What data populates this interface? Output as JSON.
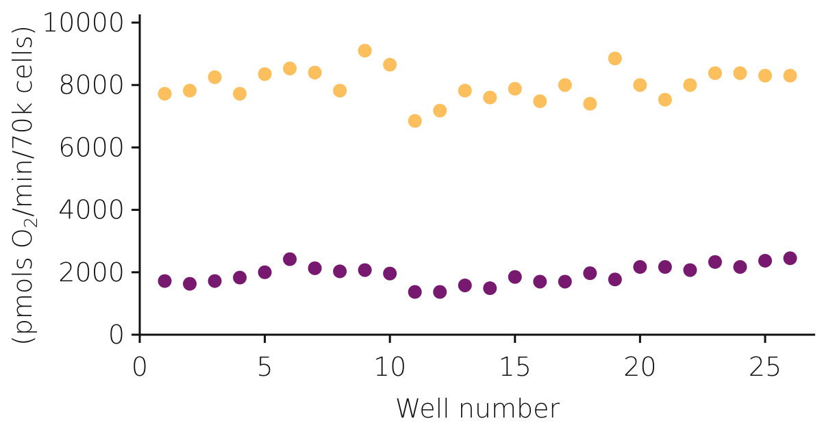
{
  "chart_data": {
    "type": "scatter",
    "xlabel": "Well number",
    "ylabel": {
      "prefix": "(pmols O",
      "subscript": "2",
      "suffix": "/min/70k cells)"
    },
    "xlim": [
      0,
      27
    ],
    "ylim": [
      0,
      10000
    ],
    "xticks": [
      0,
      5,
      10,
      15,
      20,
      25
    ],
    "yticks": [
      0,
      2000,
      4000,
      6000,
      8000,
      10000
    ],
    "grid": false,
    "series": [
      {
        "color": "#FBBF5E",
        "x": [
          1,
          2,
          3,
          4,
          5,
          6,
          7,
          8,
          9,
          10,
          11,
          12,
          13,
          14,
          15,
          16,
          17,
          18,
          19,
          20,
          21,
          22,
          23,
          24,
          25,
          26
        ],
        "y": [
          7720,
          7820,
          8250,
          7720,
          8350,
          8530,
          8400,
          7820,
          9100,
          8650,
          6850,
          7180,
          7820,
          7600,
          7880,
          7480,
          8000,
          7400,
          8850,
          8000,
          7530,
          8000,
          8380,
          8380,
          8300,
          8300
        ]
      },
      {
        "color": "#76196F",
        "x": [
          1,
          2,
          3,
          4,
          5,
          6,
          7,
          8,
          9,
          10,
          11,
          12,
          13,
          14,
          15,
          16,
          17,
          18,
          19,
          20,
          21,
          22,
          23,
          24,
          25,
          26
        ],
        "y": [
          1720,
          1630,
          1720,
          1830,
          2000,
          2420,
          2130,
          2030,
          2070,
          1960,
          1370,
          1370,
          1580,
          1490,
          1850,
          1700,
          1700,
          1970,
          1770,
          2170,
          2170,
          2070,
          2330,
          2170,
          2370,
          2450
        ]
      }
    ]
  }
}
